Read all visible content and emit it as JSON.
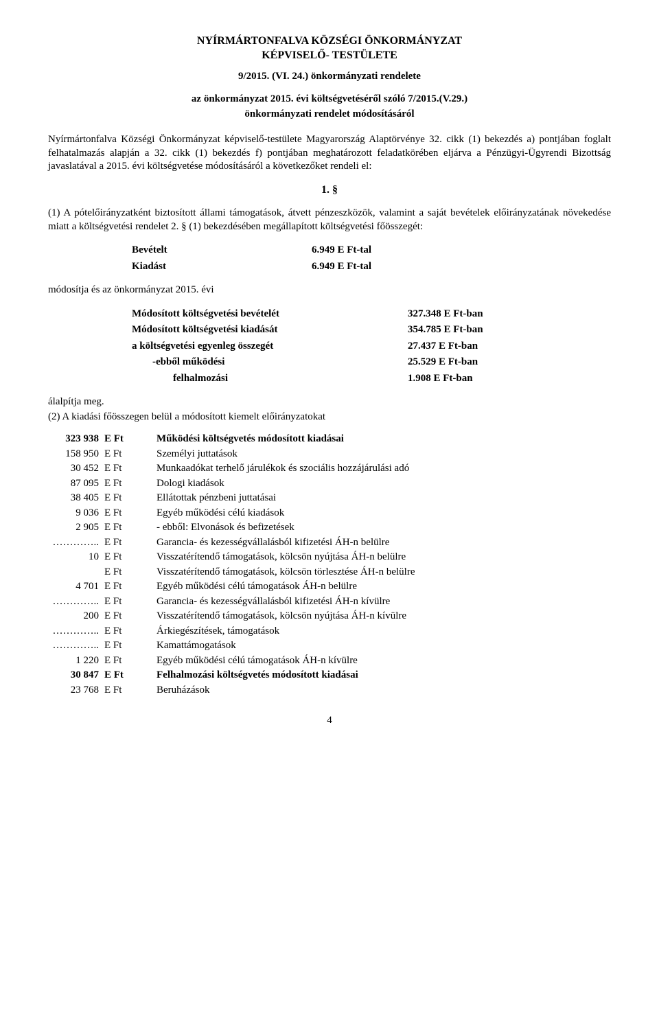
{
  "header": {
    "title1": "NYÍRMÁRTONFALVA KÖZSÉGI ÖNKORMÁNYZAT",
    "title2": "KÉPVISELŐ- TESTÜLETE",
    "regulation": "9/2015. (VI. 24.)  önkormányzati rendelete",
    "about1": "az önkormányzat 2015. évi költségvetéséről szóló 7/2015.(V.29.)",
    "about2": "önkormányzati rendelet módosításáról"
  },
  "preamble": "Nyírmártonfalva Községi Önkormányzat képviselő-testülete Magyarország Alaptörvénye 32. cikk (1) bekezdés a) pontjában foglalt felhatalmazás alapján a 32. cikk (1) bekezdés f) pontjában meghatározott feladatkörében eljárva a Pénzügyi-Ügyrendi Bizottság javaslatával a 2015. évi költségvetése módosításáról a következőket rendeli el:",
  "section_num": "1. §",
  "para1": "(1) A pótelőirányzatként biztosított állami támogatások, átvett pénzeszközök, valamint a saját bevételek előirányzatának növekedése miatt a költségvetési rendelet 2. § (1) bekezdésében megállapított költségvetési főösszegét:",
  "amounts": {
    "revenue_label": "Bevételt",
    "revenue_value": "6.949  E Ft-tal",
    "expense_label": "Kiadást",
    "expense_value": "6.949  E Ft-tal"
  },
  "mod_line": "módosítja és az önkormányzat 2015. évi",
  "summary": [
    {
      "label": "Módosított költségvetési bevételét",
      "value": "327.348  E Ft-ban",
      "indent": 0
    },
    {
      "label": "Módosított költségvetési kiadását",
      "value": "354.785  E Ft-ban",
      "indent": 0
    },
    {
      "label": "a költségvetési egyenleg összegét",
      "value": "27.437  E Ft-ban",
      "indent": 0
    },
    {
      "label": "-ebből működési",
      "value": "25.529   E Ft-ban",
      "indent": 1
    },
    {
      "label": "felhalmozási",
      "value": "1.908 E Ft-ban",
      "indent": 2
    }
  ],
  "finalize": "álalpítja meg.",
  "para2_intro": "(2) A kiadási főösszegen belül a módosított kiemelt előirányzatokat",
  "expenses": [
    {
      "amount": "323 938",
      "unit": "E Ft",
      "desc": "Működési költségvetés módosított kiadásai",
      "bold": true
    },
    {
      "amount": "158 950",
      "unit": "E Ft",
      "desc": "Személyi juttatások",
      "bold": false
    },
    {
      "amount": "30 452",
      "unit": "E Ft",
      "desc": "Munkaadókat terhelő járulékok és szociális hozzájárulási adó",
      "bold": false
    },
    {
      "amount": "87 095",
      "unit": "E Ft",
      "desc": "Dologi kiadások",
      "bold": false
    },
    {
      "amount": "38 405",
      "unit": "E Ft",
      "desc": "Ellátottak pénzbeni juttatásai",
      "bold": false
    },
    {
      "amount": "9 036",
      "unit": "E Ft",
      "desc": "Egyéb működési célú kiadások",
      "bold": false
    },
    {
      "amount": "2 905",
      "unit": "E Ft",
      "desc": "- ebből: Elvonások és befizetések",
      "bold": false
    },
    {
      "amount": "…………..",
      "unit": "E Ft",
      "desc": "Garancia- és kezességvállalásból kifizetési ÁH-n belülre",
      "bold": false
    },
    {
      "amount": "10",
      "unit": "E Ft",
      "desc": "Visszatérítendő támogatások, kölcsön nyújtása ÁH-n belülre",
      "bold": false
    },
    {
      "amount": "",
      "unit": "E Ft",
      "desc": "Visszatérítendő támogatások, kölcsön törlesztése ÁH-n belülre",
      "bold": false
    },
    {
      "amount": "4 701",
      "unit": "E Ft",
      "desc": "Egyéb működési célú támogatások ÁH-n belülre",
      "bold": false
    },
    {
      "amount": "…………..",
      "unit": "E Ft",
      "desc": "Garancia- és kezességvállalásból kifizetési ÁH-n kívülre",
      "bold": false
    },
    {
      "amount": "200",
      "unit": "E Ft",
      "desc": "Visszatérítendő támogatások, kölcsön nyújtása ÁH-n kívülre",
      "bold": false
    },
    {
      "amount": "…………..",
      "unit": "E Ft",
      "desc": "Árkiegészítések, támogatások",
      "bold": false
    },
    {
      "amount": "…………..",
      "unit": "E Ft",
      "desc": "Kamattámogatások",
      "bold": false
    },
    {
      "amount": "1 220",
      "unit": "E Ft",
      "desc": "Egyéb működési célú támogatások ÁH-n kívülre",
      "bold": false
    },
    {
      "amount": "30 847",
      "unit": "E Ft",
      "desc": "Felhalmozási költségvetés módosított kiadásai",
      "bold": true
    },
    {
      "amount": "23 768",
      "unit": "E Ft",
      "desc": "Beruházások",
      "bold": false
    }
  ],
  "page_number": "4"
}
